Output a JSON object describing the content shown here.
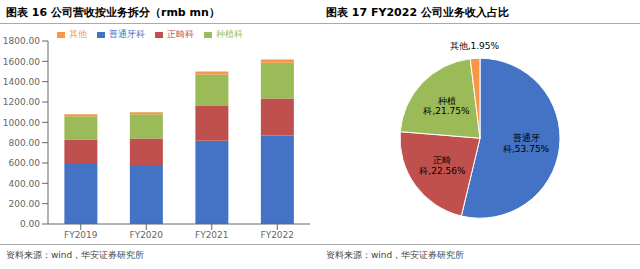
{
  "chart_data": [
    {
      "type": "bar",
      "title": "图表 16  公司营收按业务拆分（rmb mn）",
      "annotations": [
        "资料来源：wind，华安证券研究所"
      ],
      "categories": [
        "FY2019",
        "FY2020",
        "FY2021",
        "FY2022"
      ],
      "series": [
        {
          "name": "普通牙科",
          "color": "#4472C4",
          "values": [
            600,
            580,
            820,
            870
          ]
        },
        {
          "name": "正畸科",
          "color": "#C0504D",
          "values": [
            230,
            260,
            340,
            365
          ]
        },
        {
          "name": "种植科",
          "color": "#9BBB59",
          "values": [
            230,
            240,
            310,
            350
          ]
        },
        {
          "name": "其他",
          "color": "#F79646",
          "values": [
            20,
            20,
            30,
            32
          ]
        }
      ],
      "stacked": true,
      "legend": "top",
      "grid": false,
      "ylim": [
        0,
        1800
      ],
      "yticks": [
        {
          "value": 0,
          "label": "0.00"
        },
        {
          "value": 200,
          "label": "200.00"
        },
        {
          "value": 400,
          "label": "400.00"
        },
        {
          "value": 600,
          "label": "600.00"
        },
        {
          "value": 800,
          "label": "800.00"
        },
        {
          "value": 1000,
          "label": "1000.00"
        },
        {
          "value": 1200,
          "label": "1200.00"
        },
        {
          "value": 1400,
          "label": "1400.00"
        },
        {
          "value": 1600,
          "label": "1600.00"
        },
        {
          "value": 1800,
          "label": "1800.00"
        }
      ]
    },
    {
      "type": "pie",
      "title": "图表 17 FY2022  公司业务收入占比",
      "annotations": [
        "资料来源：wind，华安证券研究所"
      ],
      "values": [
        53.75,
        22.56,
        21.75,
        1.95
      ],
      "value_labels": [
        "普通牙\n科,53.75%",
        "正畸\n科,22.56%",
        "种植\n科,21.75%",
        "其他,1.95%"
      ],
      "colors": [
        "#4472C4",
        "#C0504D",
        "#9BBB59",
        "#F79646"
      ],
      "data_labels": true
    }
  ]
}
